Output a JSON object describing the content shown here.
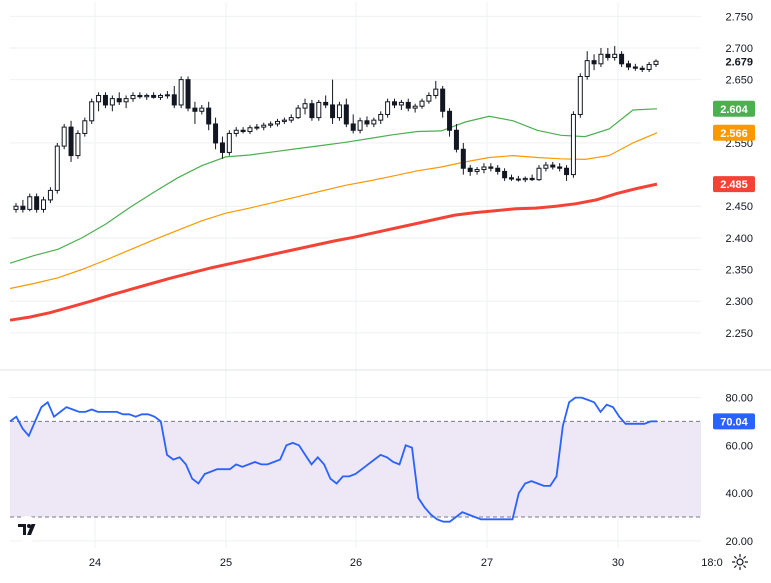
{
  "chart_data": [
    {
      "type": "candlestick",
      "panel": "price",
      "ylim": [
        2.215,
        2.76
      ],
      "y_ticks": [
        "2.750",
        "2.700",
        "2.650",
        "2.550",
        "2.450",
        "2.400",
        "2.350",
        "2.300",
        "2.250"
      ],
      "last_price_label": "2.679",
      "candles": [
        [
          2.445,
          2.455,
          2.44,
          2.45
        ],
        [
          2.45,
          2.46,
          2.44,
          2.445
        ],
        [
          2.445,
          2.47,
          2.442,
          2.465
        ],
        [
          2.465,
          2.47,
          2.44,
          2.445
        ],
        [
          2.445,
          2.465,
          2.44,
          2.46
        ],
        [
          2.46,
          2.48,
          2.455,
          2.475
        ],
        [
          2.475,
          2.55,
          2.47,
          2.545
        ],
        [
          2.545,
          2.58,
          2.54,
          2.575
        ],
        [
          2.575,
          2.585,
          2.52,
          2.53
        ],
        [
          2.53,
          2.57,
          2.525,
          2.565
        ],
        [
          2.565,
          2.59,
          2.56,
          2.585
        ],
        [
          2.585,
          2.62,
          2.58,
          2.615
        ],
        [
          2.615,
          2.63,
          2.6,
          2.625
        ],
        [
          2.625,
          2.63,
          2.605,
          2.61
        ],
        [
          2.61,
          2.625,
          2.6,
          2.62
        ],
        [
          2.62,
          2.63,
          2.61,
          2.615
        ],
        [
          2.615,
          2.625,
          2.605,
          2.62
        ],
        [
          2.62,
          2.63,
          2.615,
          2.625
        ],
        [
          2.625,
          2.63,
          2.62,
          2.623
        ],
        [
          2.623,
          2.628,
          2.618,
          2.625
        ],
        [
          2.625,
          2.63,
          2.62,
          2.622
        ],
        [
          2.622,
          2.628,
          2.618,
          2.625
        ],
        [
          2.625,
          2.632,
          2.62,
          2.626
        ],
        [
          2.626,
          2.64,
          2.605,
          2.61
        ],
        [
          2.61,
          2.655,
          2.605,
          2.65
        ],
        [
          2.65,
          2.655,
          2.6,
          2.605
        ],
        [
          2.605,
          2.615,
          2.58,
          2.6
        ],
        [
          2.6,
          2.61,
          2.595,
          2.605
        ],
        [
          2.605,
          2.615,
          2.57,
          2.58
        ],
        [
          2.58,
          2.59,
          2.54,
          2.55
        ],
        [
          2.55,
          2.56,
          2.525,
          2.535
        ],
        [
          2.535,
          2.57,
          2.53,
          2.565
        ],
        [
          2.565,
          2.575,
          2.56,
          2.57
        ],
        [
          2.57,
          2.575,
          2.565,
          2.568
        ],
        [
          2.568,
          2.578,
          2.564,
          2.574
        ],
        [
          2.574,
          2.58,
          2.57,
          2.575
        ],
        [
          2.575,
          2.582,
          2.57,
          2.578
        ],
        [
          2.578,
          2.584,
          2.574,
          2.58
        ],
        [
          2.58,
          2.588,
          2.576,
          2.584
        ],
        [
          2.584,
          2.59,
          2.58,
          2.586
        ],
        [
          2.586,
          2.595,
          2.582,
          2.59
        ],
        [
          2.59,
          2.61,
          2.588,
          2.605
        ],
        [
          2.605,
          2.62,
          2.595,
          2.612
        ],
        [
          2.612,
          2.618,
          2.585,
          2.59
        ],
        [
          2.59,
          2.618,
          2.585,
          2.614
        ],
        [
          2.614,
          2.625,
          2.605,
          2.61
        ],
        [
          2.61,
          2.65,
          2.58,
          2.59
        ],
        [
          2.59,
          2.615,
          2.585,
          2.61
        ],
        [
          2.61,
          2.62,
          2.575,
          2.58
        ],
        [
          2.58,
          2.595,
          2.565,
          2.57
        ],
        [
          2.57,
          2.59,
          2.565,
          2.585
        ],
        [
          2.585,
          2.592,
          2.575,
          2.58
        ],
        [
          2.58,
          2.59,
          2.575,
          2.586
        ],
        [
          2.586,
          2.6,
          2.58,
          2.595
        ],
        [
          2.595,
          2.62,
          2.59,
          2.615
        ],
        [
          2.615,
          2.62,
          2.605,
          2.61
        ],
        [
          2.61,
          2.618,
          2.602,
          2.614
        ],
        [
          2.614,
          2.62,
          2.6,
          2.605
        ],
        [
          2.605,
          2.612,
          2.598,
          2.608
        ],
        [
          2.608,
          2.62,
          2.604,
          2.616
        ],
        [
          2.616,
          2.63,
          2.612,
          2.625
        ],
        [
          2.625,
          2.648,
          2.62,
          2.635
        ],
        [
          2.635,
          2.64,
          2.59,
          2.6
        ],
        [
          2.6,
          2.605,
          2.56,
          2.57
        ],
        [
          2.57,
          2.58,
          2.535,
          2.54
        ],
        [
          2.54,
          2.55,
          2.5,
          2.51
        ],
        [
          2.51,
          2.515,
          2.498,
          2.505
        ],
        [
          2.505,
          2.512,
          2.5,
          2.508
        ],
        [
          2.508,
          2.518,
          2.502,
          2.512
        ],
        [
          2.512,
          2.518,
          2.505,
          2.51
        ],
        [
          2.51,
          2.515,
          2.5,
          2.505
        ],
        [
          2.505,
          2.51,
          2.49,
          2.495
        ],
        [
          2.495,
          2.5,
          2.49,
          2.493
        ],
        [
          2.493,
          2.498,
          2.489,
          2.492
        ],
        [
          2.492,
          2.497,
          2.488,
          2.494
        ],
        [
          2.494,
          2.5,
          2.49,
          2.492
        ],
        [
          2.492,
          2.515,
          2.49,
          2.51
        ],
        [
          2.51,
          2.52,
          2.505,
          2.515
        ],
        [
          2.515,
          2.52,
          2.508,
          2.512
        ],
        [
          2.512,
          2.518,
          2.505,
          2.51
        ],
        [
          2.51,
          2.515,
          2.49,
          2.5
        ],
        [
          2.5,
          2.6,
          2.495,
          2.595
        ],
        [
          2.595,
          2.66,
          2.59,
          2.655
        ],
        [
          2.655,
          2.695,
          2.65,
          2.68
        ],
        [
          2.68,
          2.69,
          2.665,
          2.675
        ],
        [
          2.675,
          2.7,
          2.67,
          2.69
        ],
        [
          2.69,
          2.7,
          2.68,
          2.685
        ],
        [
          2.685,
          2.703,
          2.68,
          2.69
        ],
        [
          2.69,
          2.695,
          2.67,
          2.675
        ],
        [
          2.675,
          2.68,
          2.665,
          2.67
        ],
        [
          2.67,
          2.675,
          2.664,
          2.668
        ],
        [
          2.668,
          2.672,
          2.662,
          2.666
        ],
        [
          2.666,
          2.678,
          2.662,
          2.674
        ],
        [
          2.674,
          2.682,
          2.67,
          2.679
        ]
      ],
      "lines": [
        {
          "color": "#4caf50",
          "label": "2.604",
          "values": [
            2.36,
            2.372,
            2.382,
            2.4,
            2.422,
            2.448,
            2.472,
            2.495,
            2.514,
            2.528,
            2.531,
            2.536,
            2.541,
            2.546,
            2.551,
            2.557,
            2.563,
            2.568,
            2.569,
            2.583,
            2.592,
            2.585,
            2.57,
            2.562,
            2.56,
            2.572,
            2.602,
            2.604
          ]
        },
        {
          "color": "#ff9800",
          "label": "2.566",
          "values": [
            2.32,
            2.328,
            2.337,
            2.35,
            2.365,
            2.381,
            2.397,
            2.412,
            2.427,
            2.439,
            2.447,
            2.456,
            2.465,
            2.474,
            2.483,
            2.49,
            2.498,
            2.506,
            2.512,
            2.52,
            2.527,
            2.53,
            2.527,
            2.525,
            2.524,
            2.53,
            2.55,
            2.566
          ]
        },
        {
          "color": "#f44336",
          "label": "2.485",
          "values": [
            2.27,
            2.275,
            2.282,
            2.291,
            2.3,
            2.31,
            2.319,
            2.328,
            2.337,
            2.345,
            2.353,
            2.36,
            2.367,
            2.374,
            2.381,
            2.388,
            2.395,
            2.401,
            2.408,
            2.415,
            2.422,
            2.429,
            2.436,
            2.44,
            2.443,
            2.446,
            2.447,
            2.45,
            2.454,
            2.46,
            2.47,
            2.478,
            2.485
          ]
        }
      ]
    },
    {
      "type": "line",
      "panel": "rsi",
      "ylim": [
        17,
        84
      ],
      "y_ticks": [
        "80.00",
        "60.00",
        "40.00",
        "20.00"
      ],
      "band": [
        70,
        30
      ],
      "last_value_label": "70.04",
      "color": "#2962ff",
      "values": [
        70,
        72,
        67,
        64,
        70,
        76,
        78,
        72,
        74,
        76,
        75,
        74,
        74,
        75,
        74,
        74,
        74,
        74,
        73,
        73,
        72,
        73,
        73,
        72,
        70,
        56,
        54,
        55,
        52,
        46,
        44,
        48,
        49,
        50,
        50,
        50,
        52,
        51,
        52,
        53,
        52,
        52,
        53,
        54,
        60,
        61,
        60,
        56,
        52,
        55,
        52,
        46,
        44,
        47,
        47,
        48,
        50,
        52,
        54,
        56,
        55,
        53,
        52,
        60,
        59,
        38,
        34,
        31,
        29,
        28,
        28,
        30,
        32,
        31,
        30,
        29,
        29,
        29,
        29,
        29,
        29,
        40,
        44,
        45,
        44,
        43,
        43,
        47,
        68,
        78,
        80,
        80,
        79,
        78,
        74,
        77,
        76,
        72,
        69,
        69,
        69,
        69,
        70,
        70.04
      ]
    }
  ],
  "x_ticks": [
    "24",
    "25",
    "26",
    "27",
    "30",
    "18:0"
  ],
  "ui": {
    "logo_icon": "tradingview-logo-icon",
    "settings_icon": "gear-icon",
    "colors": {
      "up": "#131722",
      "down": "#131722",
      "band_fill": "#ede7f6",
      "grid": "#eef0f3"
    }
  }
}
